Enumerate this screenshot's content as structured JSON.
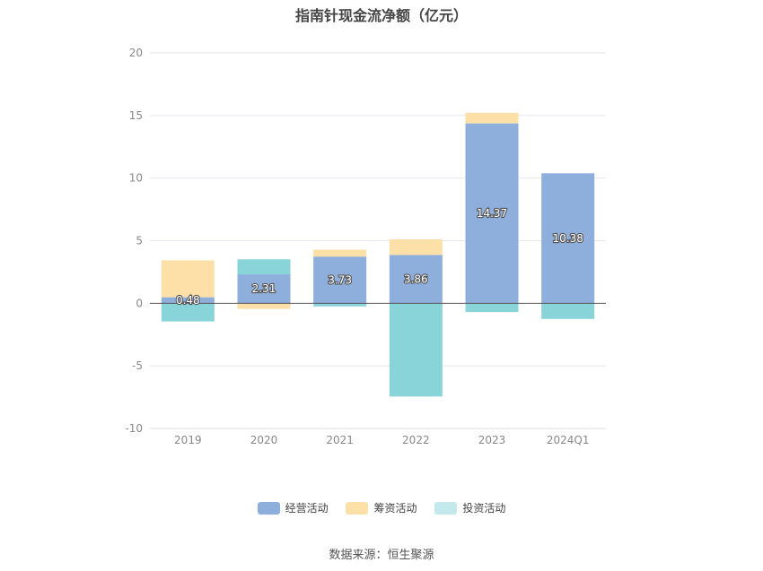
{
  "chart_data": {
    "type": "bar",
    "stacked": true,
    "title": "指南针现金流净额（亿元）",
    "categories": [
      "2019",
      "2020",
      "2021",
      "2022",
      "2023",
      "2024Q1"
    ],
    "series": [
      {
        "name": "经营活动",
        "color": "#8eaedb",
        "values": [
          0.48,
          2.31,
          3.73,
          3.86,
          14.37,
          10.38
        ]
      },
      {
        "name": "筹资活动",
        "color": "#fde0a8",
        "values": [
          2.95,
          -0.45,
          0.55,
          1.25,
          0.85,
          0.0
        ]
      },
      {
        "name": "投资活动",
        "color": "#88d4d9",
        "values": [
          -1.45,
          1.2,
          -0.25,
          -7.45,
          -0.7,
          -1.25
        ]
      }
    ],
    "labels": [
      "0.48",
      "2.31",
      "3.73",
      "3.86",
      "14.37",
      "10.38"
    ],
    "ylim": [
      -10,
      20
    ],
    "yticks": [
      "20",
      "15",
      "10",
      "5",
      "0",
      "-5",
      "-10"
    ],
    "grid": true,
    "legend_position": "bottom"
  },
  "legend": [
    {
      "label": "经营活动",
      "color": "#8eaedb"
    },
    {
      "label": "筹资活动",
      "color": "#fde0a8"
    },
    {
      "label": "投资活动",
      "color": "#c4e9ec"
    }
  ],
  "source": "数据来源：恒生聚源"
}
